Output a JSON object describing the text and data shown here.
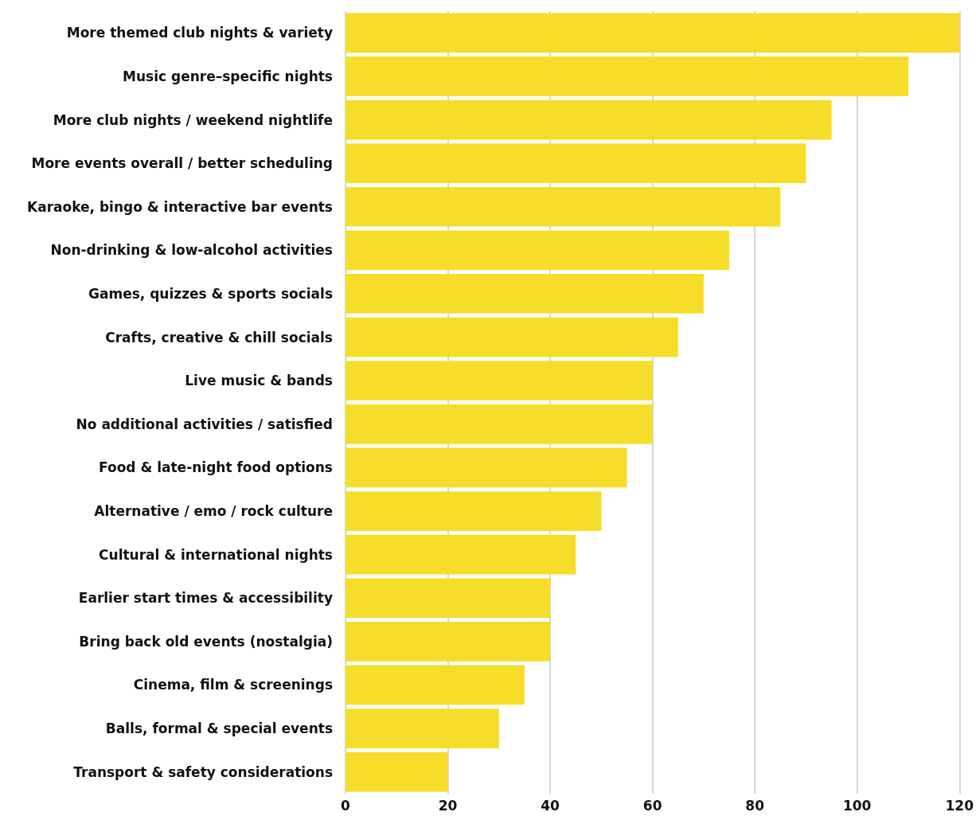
{
  "chart_data": {
    "type": "bar",
    "orientation": "horizontal",
    "categories": [
      "More themed club nights & variety",
      "Music genre–specific nights",
      "More club nights / weekend nightlife",
      "More events overall / better scheduling",
      "Karaoke, bingo & interactive bar events",
      "Non-drinking & low-alcohol activities",
      "Games, quizzes & sports socials",
      "Crafts, creative & chill socials",
      "Live music & bands",
      "No additional activities / satisfied",
      "Food & late-night food options",
      "Alternative / emo / rock culture",
      "Cultural & international nights",
      "Earlier start times & accessibility",
      "Bring back old events (nostalgia)",
      "Cinema, film & screenings",
      "Balls, formal & special events",
      "Transport & safety considerations"
    ],
    "values": [
      120,
      110,
      95,
      90,
      85,
      75,
      70,
      65,
      60,
      60,
      55,
      50,
      45,
      40,
      40,
      35,
      30,
      20
    ],
    "color": "#f6dd2a",
    "xlim": [
      0,
      120
    ],
    "xticks": [
      0,
      20,
      40,
      60,
      80,
      100,
      120
    ],
    "grid": "x"
  }
}
